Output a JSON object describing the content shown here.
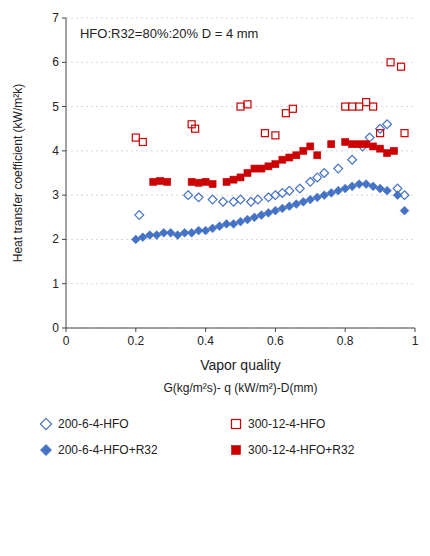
{
  "chart_data": {
    "type": "scatter",
    "annotation": "HFO:R32=80%:20%    D = 4 mm",
    "xlabel": "Vapor quality",
    "xlabel2": "G(kg/m²s)- q (kW/m²)-D(mm)",
    "ylabel": "Heat transfer coefficient (kW/m²k)",
    "xlim": [
      0,
      1
    ],
    "ylim": [
      0,
      7
    ],
    "xticks": [
      0,
      0.2,
      0.4,
      0.6,
      0.8,
      1
    ],
    "yticks": [
      0,
      1,
      2,
      3,
      4,
      5,
      6,
      7
    ],
    "grid": "y",
    "legend": "bottom",
    "series": [
      {
        "name": "200-6-4-HFO",
        "color": "#4472C4",
        "marker": "diamond-open",
        "x": [
          0.21,
          0.35,
          0.38,
          0.42,
          0.45,
          0.48,
          0.5,
          0.53,
          0.55,
          0.58,
          0.6,
          0.62,
          0.64,
          0.67,
          0.7,
          0.72,
          0.74,
          0.78,
          0.82,
          0.85,
          0.87,
          0.9,
          0.92,
          0.95,
          0.97
        ],
        "values": [
          2.55,
          3.0,
          2.95,
          2.9,
          2.85,
          2.85,
          2.9,
          2.85,
          2.9,
          2.95,
          3.0,
          3.05,
          3.1,
          3.15,
          3.3,
          3.4,
          3.5,
          3.6,
          3.8,
          4.1,
          4.3,
          4.5,
          4.6,
          3.15,
          3.0
        ]
      },
      {
        "name": "200-6-4-HFO+R32",
        "color": "#4472C4",
        "marker": "diamond",
        "x": [
          0.2,
          0.22,
          0.24,
          0.26,
          0.28,
          0.3,
          0.32,
          0.34,
          0.36,
          0.38,
          0.4,
          0.42,
          0.44,
          0.46,
          0.48,
          0.5,
          0.52,
          0.54,
          0.56,
          0.58,
          0.6,
          0.62,
          0.64,
          0.66,
          0.68,
          0.7,
          0.72,
          0.74,
          0.76,
          0.78,
          0.8,
          0.82,
          0.84,
          0.86,
          0.88,
          0.9,
          0.92,
          0.95,
          0.97
        ],
        "values": [
          2.0,
          2.05,
          2.1,
          2.1,
          2.15,
          2.15,
          2.1,
          2.15,
          2.15,
          2.2,
          2.2,
          2.25,
          2.3,
          2.35,
          2.35,
          2.4,
          2.45,
          2.5,
          2.55,
          2.6,
          2.65,
          2.7,
          2.75,
          2.8,
          2.85,
          2.9,
          2.95,
          3.0,
          3.05,
          3.1,
          3.15,
          3.2,
          3.25,
          3.25,
          3.2,
          3.15,
          3.1,
          3.0,
          2.65
        ]
      },
      {
        "name": "300-12-4-HFO",
        "color": "#CC0000",
        "marker": "square-open",
        "x": [
          0.2,
          0.22,
          0.36,
          0.37,
          0.5,
          0.52,
          0.57,
          0.6,
          0.63,
          0.65,
          0.8,
          0.82,
          0.84,
          0.86,
          0.88,
          0.9,
          0.93,
          0.96,
          0.97
        ],
        "values": [
          4.3,
          4.2,
          4.6,
          4.5,
          5.0,
          5.05,
          4.4,
          4.35,
          4.85,
          4.95,
          5.0,
          5.0,
          5.0,
          5.1,
          5.0,
          4.4,
          6.0,
          5.9,
          4.4
        ]
      },
      {
        "name": "300-12-4-HFO+R32",
        "color": "#CC0000",
        "marker": "square",
        "x": [
          0.25,
          0.27,
          0.29,
          0.36,
          0.38,
          0.4,
          0.42,
          0.46,
          0.48,
          0.5,
          0.52,
          0.54,
          0.56,
          0.58,
          0.6,
          0.62,
          0.64,
          0.66,
          0.68,
          0.7,
          0.72,
          0.76,
          0.8,
          0.82,
          0.84,
          0.86,
          0.88,
          0.9,
          0.92,
          0.94
        ],
        "values": [
          3.3,
          3.32,
          3.3,
          3.3,
          3.28,
          3.3,
          3.25,
          3.3,
          3.35,
          3.4,
          3.5,
          3.6,
          3.6,
          3.65,
          3.7,
          3.8,
          3.85,
          3.9,
          4.0,
          4.1,
          3.9,
          4.15,
          4.2,
          4.15,
          4.15,
          4.15,
          4.1,
          4.05,
          3.95,
          4.0
        ]
      }
    ]
  }
}
